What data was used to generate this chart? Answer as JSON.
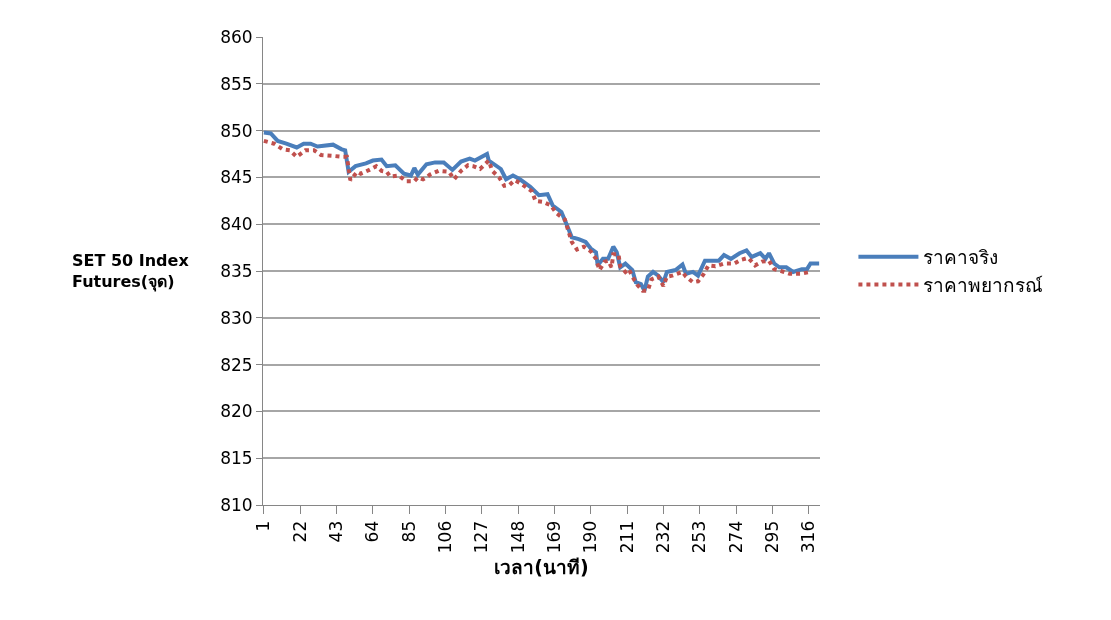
{
  "chart_data": {
    "type": "line",
    "xlabel": "เวลา(นาที)",
    "ylabel": "SET 50 Index Futures(จุด)",
    "xlim": [
      0.5,
      322.5
    ],
    "xticks": [
      1,
      22,
      43,
      64,
      85,
      106,
      127,
      148,
      169,
      190,
      211,
      232,
      253,
      274,
      295,
      316
    ],
    "ylim": [
      810,
      860
    ],
    "yticks": [
      810,
      815,
      820,
      825,
      830,
      835,
      840,
      845,
      850,
      855,
      860
    ],
    "grid": "y",
    "legend": "right",
    "marker": "none",
    "series": [
      {
        "name": "ราคาจริง",
        "color": "#4a7ebb",
        "line_style": "solid",
        "x": [
          1,
          5,
          9,
          14,
          20,
          24,
          28,
          32,
          41,
          46,
          48,
          50,
          54,
          60,
          64,
          69,
          72,
          77,
          82,
          86,
          88,
          90,
          95,
          100,
          105,
          110,
          115,
          120,
          123,
          130,
          131,
          138,
          141,
          145,
          149,
          155,
          160,
          165,
          168,
          173,
          176,
          179,
          183,
          187,
          190,
          193,
          194,
          197,
          200,
          203,
          205,
          207,
          210,
          214,
          216,
          219,
          221,
          223,
          226,
          229,
          232,
          234,
          239,
          243,
          245,
          249,
          252,
          256,
          260,
          264,
          267,
          271,
          276,
          280,
          283,
          288,
          291,
          293,
          296,
          299,
          303,
          307,
          312,
          315,
          317,
          322
        ],
        "values": [
          849.8,
          849.7,
          848.9,
          848.6,
          848.2,
          848.6,
          848.6,
          848.3,
          848.5,
          848.0,
          847.9,
          845.6,
          846.2,
          846.5,
          846.8,
          846.9,
          846.2,
          846.3,
          845.4,
          845.2,
          846.0,
          845.3,
          846.4,
          846.6,
          846.6,
          845.8,
          846.7,
          847.0,
          846.8,
          847.5,
          846.8,
          845.9,
          844.8,
          845.2,
          844.8,
          844.0,
          843.1,
          843.2,
          842.0,
          841.3,
          840.0,
          838.6,
          838.4,
          838.1,
          837.4,
          837.0,
          835.6,
          836.3,
          836.3,
          837.6,
          837.0,
          835.4,
          835.8,
          835.1,
          833.8,
          833.6,
          832.9,
          834.4,
          834.9,
          834.5,
          833.8,
          834.9,
          835.1,
          835.7,
          834.7,
          834.9,
          834.5,
          836.1,
          836.1,
          836.1,
          836.7,
          836.3,
          836.9,
          837.2,
          836.5,
          836.9,
          836.3,
          836.9,
          835.8,
          835.4,
          835.4,
          834.9,
          835.2,
          835.2,
          835.8,
          835.8
        ]
      },
      {
        "name": "ราคาพยากรณ์",
        "color": "#c0504d",
        "line_style": "dotted",
        "x": [
          1,
          7,
          12,
          16,
          20,
          25,
          30,
          34,
          41,
          46,
          49,
          51,
          55,
          57,
          62,
          66,
          69,
          72,
          74,
          79,
          83,
          88,
          90,
          93,
          95,
          97,
          102,
          108,
          111,
          115,
          119,
          122,
          126,
          131,
          133,
          137,
          140,
          143,
          146,
          150,
          153,
          156,
          158,
          162,
          167,
          170,
          175,
          177,
          179,
          182,
          186,
          190,
          193,
          195,
          198,
          200,
          202,
          203,
          206,
          207,
          210,
          212,
          214,
          217,
          220,
          223,
          225,
          229,
          232,
          234,
          237,
          243,
          245,
          249,
          252,
          255,
          258,
          262,
          267,
          273,
          277,
          281,
          285,
          289,
          293,
          296,
          300,
          305,
          311,
          317
        ],
        "values": [
          848.9,
          848.6,
          848.0,
          847.9,
          847.2,
          847.9,
          847.9,
          847.4,
          847.3,
          847.2,
          847.2,
          844.7,
          845.6,
          845.4,
          845.8,
          846.2,
          845.7,
          845.6,
          845.1,
          845.2,
          844.6,
          844.6,
          845.0,
          844.8,
          845.0,
          845.3,
          845.7,
          845.6,
          844.8,
          845.7,
          846.3,
          846.2,
          845.9,
          846.8,
          845.7,
          845.0,
          844.1,
          844.2,
          844.7,
          844.3,
          843.9,
          843.5,
          842.5,
          842.4,
          842.0,
          841.2,
          840.5,
          839.3,
          838.1,
          837.3,
          837.6,
          837.1,
          836.3,
          835.1,
          836.0,
          836.1,
          835.4,
          836.8,
          836.8,
          835.5,
          834.9,
          835.2,
          834.4,
          833.5,
          832.9,
          832.9,
          834.1,
          834.4,
          833.4,
          834.4,
          834.5,
          834.9,
          834.4,
          833.8,
          833.9,
          834.6,
          835.6,
          835.5,
          835.8,
          835.8,
          836.2,
          836.4,
          835.6,
          836.0,
          836.1,
          835.2,
          835.0,
          834.7,
          834.7,
          834.9
        ]
      }
    ]
  }
}
